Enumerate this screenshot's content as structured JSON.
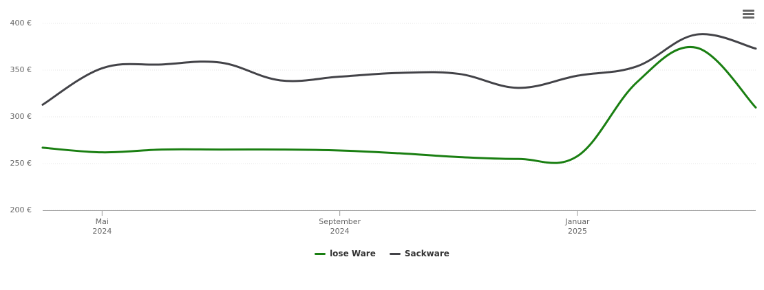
{
  "chart_data": {
    "type": "line",
    "x": [
      "2024-04",
      "2024-05",
      "2024-06",
      "2024-07",
      "2024-08",
      "2024-09",
      "2024-10",
      "2024-11",
      "2024-12",
      "2025-01",
      "2025-02",
      "2025-03",
      "2025-04"
    ],
    "series": [
      {
        "name": "lose Ware",
        "color": "#1a7f12",
        "values": [
          267,
          262,
          265,
          265,
          265,
          264,
          261,
          257,
          255,
          258,
          337,
          374,
          310
        ]
      },
      {
        "name": "Sackware",
        "color": "#434348",
        "values": [
          313,
          352,
          356,
          358,
          339,
          343,
          347,
          346,
          331,
          344,
          354,
          388,
          373
        ]
      }
    ],
    "xlim": [
      "2024-04",
      "2025-04"
    ],
    "xticks": [
      {
        "value": "2024-05",
        "label": "Mai\n2024"
      },
      {
        "value": "2024-09",
        "label": "September\n2024"
      },
      {
        "value": "2025-01",
        "label": "Januar\n2025"
      }
    ],
    "ylim": [
      200,
      400
    ],
    "yticks": [
      {
        "value": 200,
        "label": "200 €"
      },
      {
        "value": 250,
        "label": "250 €"
      },
      {
        "value": 300,
        "label": "300 €"
      },
      {
        "value": 350,
        "label": "350 €"
      },
      {
        "value": 400,
        "label": "400 €"
      }
    ],
    "grid": true,
    "legend": "bottom"
  }
}
